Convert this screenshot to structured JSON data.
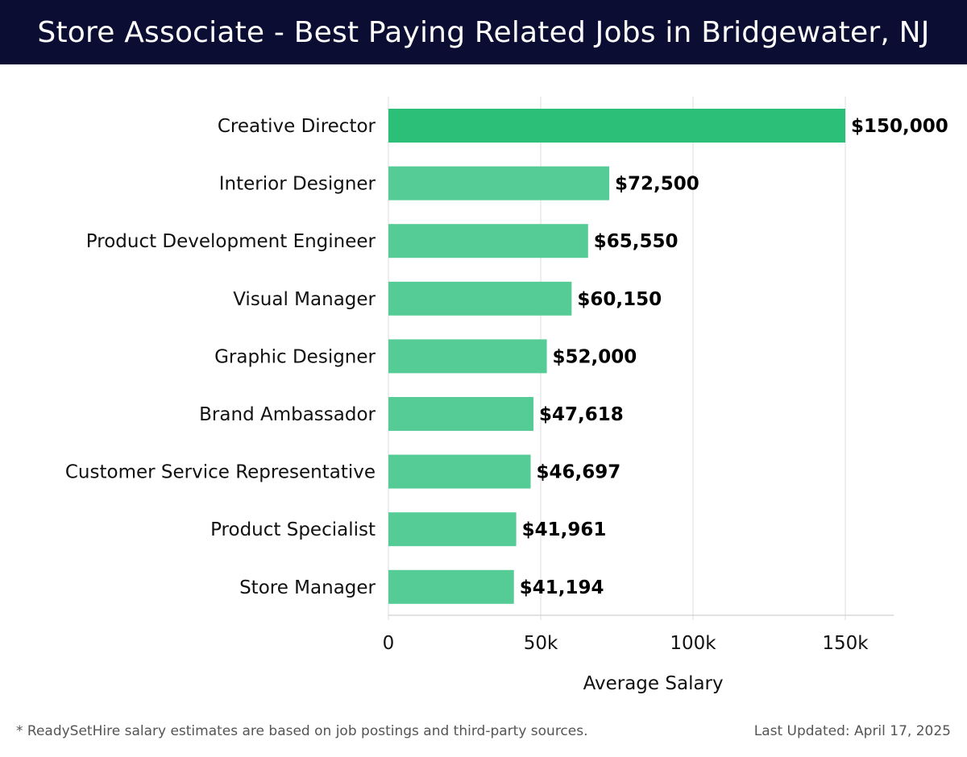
{
  "header": {
    "title": "Store Associate - Best Paying Related Jobs in Bridgewater, NJ"
  },
  "chart_data": {
    "type": "bar",
    "orientation": "horizontal",
    "title": "Store Associate - Best Paying Related Jobs in Bridgewater, NJ",
    "xlabel": "Average Salary",
    "ylabel": "",
    "xlim": [
      0,
      158000
    ],
    "xticks": [
      0,
      50000,
      100000,
      150000
    ],
    "xtick_labels": [
      "0",
      "50k",
      "100k",
      "150k"
    ],
    "grid": true,
    "categories": [
      "Creative Director",
      "Interior Designer",
      "Product Development Engineer",
      "Visual Manager",
      "Graphic Designer",
      "Brand Ambassador",
      "Customer Service Representative",
      "Product Specialist",
      "Store Manager"
    ],
    "values": [
      150000,
      72500,
      65550,
      60150,
      52000,
      47618,
      46697,
      41961,
      41194
    ],
    "value_labels": [
      "$150,000",
      "$72,500",
      "$65,550",
      "$60,150",
      "$52,000",
      "$47,618",
      "$46,697",
      "$41,961",
      "$41,194"
    ],
    "colors": {
      "highlight": "#2bbf78",
      "bar": "#55cc95",
      "grid": "#e2e2e2"
    }
  },
  "footer": {
    "note": "* ReadySetHire salary estimates are based on job postings and third-party sources.",
    "updated": "Last Updated: April 17, 2025"
  }
}
